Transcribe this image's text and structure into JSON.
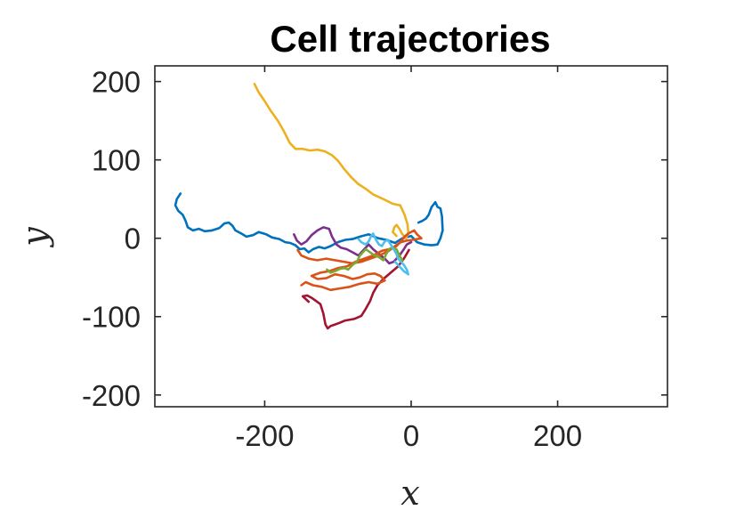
{
  "chart_data": {
    "type": "line",
    "title": "Cell trajectories",
    "xlabel": "x",
    "ylabel": "y",
    "xlim": [
      -350,
      350
    ],
    "ylim": [
      -215,
      220
    ],
    "xticks": [
      -200,
      0,
      200
    ],
    "yticks": [
      -200,
      -100,
      0,
      100,
      200
    ],
    "xtick_labels": [
      "-200",
      "0",
      "200"
    ],
    "ytick_labels": [
      "-200",
      "-100",
      "0",
      "100",
      "200"
    ],
    "grid": false,
    "series": [
      {
        "color": "#0072BD",
        "points": [
          [
            -315,
            57
          ],
          [
            -320,
            50
          ],
          [
            -322,
            42
          ],
          [
            -318,
            35
          ],
          [
            -312,
            30
          ],
          [
            -308,
            22
          ],
          [
            -305,
            14
          ],
          [
            -298,
            10
          ],
          [
            -290,
            12
          ],
          [
            -282,
            9
          ],
          [
            -272,
            10
          ],
          [
            -262,
            13
          ],
          [
            -255,
            19
          ],
          [
            -249,
            20
          ],
          [
            -244,
            16
          ],
          [
            -240,
            10
          ],
          [
            -232,
            6
          ],
          [
            -225,
            2
          ],
          [
            -216,
            4
          ],
          [
            -208,
            8
          ],
          [
            -198,
            5
          ],
          [
            -190,
            1
          ],
          [
            -180,
            -1
          ],
          [
            -172,
            -5
          ],
          [
            -165,
            -6
          ],
          [
            -158,
            -9
          ],
          [
            -152,
            -14
          ],
          [
            -146,
            -13
          ],
          [
            -140,
            -18
          ],
          [
            -134,
            -14
          ],
          [
            -126,
            -11
          ],
          [
            -118,
            -13
          ],
          [
            -110,
            -10
          ],
          [
            -100,
            -5
          ],
          [
            -90,
            -2
          ],
          [
            -80,
            -1
          ],
          [
            -70,
            2
          ],
          [
            -58,
            5
          ],
          [
            -45,
            0
          ],
          [
            -34,
            -2
          ],
          [
            -22,
            -6
          ],
          [
            -12,
            0
          ],
          [
            0,
            3
          ],
          [
            8,
            -5
          ],
          [
            18,
            -8
          ],
          [
            28,
            -9
          ],
          [
            36,
            -8
          ],
          [
            40,
            0
          ],
          [
            43,
            10
          ],
          [
            42,
            28
          ],
          [
            40,
            38
          ],
          [
            36,
            40
          ],
          [
            33,
            46
          ],
          [
            28,
            40
          ],
          [
            24,
            30
          ],
          [
            20,
            25
          ],
          [
            15,
            22
          ],
          [
            10,
            20
          ]
        ]
      },
      {
        "color": "#EDB120",
        "points": [
          [
            -214,
            197
          ],
          [
            -208,
            186
          ],
          [
            -200,
            175
          ],
          [
            -192,
            163
          ],
          [
            -182,
            150
          ],
          [
            -174,
            137
          ],
          [
            -166,
            122
          ],
          [
            -158,
            114
          ],
          [
            -148,
            114
          ],
          [
            -138,
            112
          ],
          [
            -128,
            113
          ],
          [
            -118,
            111
          ],
          [
            -108,
            106
          ],
          [
            -100,
            99
          ],
          [
            -92,
            89
          ],
          [
            -82,
            78
          ],
          [
            -72,
            69
          ],
          [
            -62,
            63
          ],
          [
            -52,
            56
          ],
          [
            -38,
            50
          ],
          [
            -25,
            44
          ],
          [
            -15,
            42
          ],
          [
            -9,
            30
          ],
          [
            -5,
            18
          ],
          [
            -4,
            8
          ],
          [
            -7,
            0
          ],
          [
            -12,
            5
          ],
          [
            -16,
            12
          ],
          [
            -20,
            17
          ],
          [
            -23,
            14
          ],
          [
            -25,
            8
          ],
          [
            -20,
            3
          ]
        ]
      },
      {
        "color": "#A2142F",
        "points": [
          [
            -3,
            -15
          ],
          [
            -10,
            -26
          ],
          [
            -18,
            -36
          ],
          [
            -28,
            -44
          ],
          [
            -38,
            -52
          ],
          [
            -46,
            -60
          ],
          [
            -52,
            -70
          ],
          [
            -56,
            -80
          ],
          [
            -62,
            -90
          ],
          [
            -68,
            -99
          ],
          [
            -78,
            -103
          ],
          [
            -90,
            -105
          ],
          [
            -98,
            -108
          ],
          [
            -104,
            -110
          ],
          [
            -110,
            -112
          ],
          [
            -114,
            -115
          ],
          [
            -117,
            -110
          ],
          [
            -120,
            -96
          ],
          [
            -124,
            -84
          ],
          [
            -130,
            -80
          ],
          [
            -136,
            -76
          ],
          [
            -142,
            -73
          ],
          [
            -148,
            -74
          ],
          [
            -140,
            -81
          ]
        ]
      },
      {
        "color": "#7E2F8E",
        "points": [
          [
            -160,
            5
          ],
          [
            -156,
            -3
          ],
          [
            -150,
            -8
          ],
          [
            -143,
            -4
          ],
          [
            -136,
            4
          ],
          [
            -128,
            10
          ],
          [
            -120,
            14
          ],
          [
            -112,
            12
          ],
          [
            -108,
            2
          ],
          [
            -102,
            -8
          ],
          [
            -96,
            -12
          ],
          [
            -88,
            -14
          ],
          [
            -80,
            -18
          ],
          [
            -72,
            -22
          ],
          [
            -64,
            -14
          ],
          [
            -58,
            -8
          ],
          [
            -52,
            -14
          ],
          [
            -44,
            -20
          ],
          [
            -36,
            -26
          ],
          [
            -30,
            -32
          ],
          [
            -24,
            -30
          ],
          [
            -16,
            -22
          ],
          [
            -10,
            -14
          ],
          [
            -6,
            -8
          ],
          [
            0,
            -5
          ]
        ]
      },
      {
        "color": "#D95319",
        "points": [
          [
            -155,
            -15
          ],
          [
            -150,
            -22
          ],
          [
            -140,
            -26
          ],
          [
            -128,
            -28
          ],
          [
            -116,
            -26
          ],
          [
            -104,
            -28
          ],
          [
            -92,
            -30
          ],
          [
            -80,
            -32
          ],
          [
            -68,
            -30
          ],
          [
            -56,
            -26
          ],
          [
            -44,
            -22
          ],
          [
            -32,
            -17
          ],
          [
            -22,
            -10
          ],
          [
            -14,
            -5
          ],
          [
            -6,
            -3
          ],
          [
            2,
            -2
          ],
          [
            8,
            -1
          ],
          [
            14,
            0
          ],
          [
            8,
            5
          ],
          [
            4,
            10
          ],
          [
            -2,
            7
          ],
          [
            -8,
            3
          ],
          [
            -14,
            -4
          ],
          [
            -20,
            -10
          ],
          [
            -30,
            -14
          ],
          [
            -40,
            -16
          ],
          [
            -52,
            -22
          ],
          [
            -64,
            -26
          ],
          [
            -76,
            -30
          ],
          [
            -88,
            -36
          ],
          [
            -100,
            -38
          ],
          [
            -112,
            -42
          ],
          [
            -124,
            -44
          ],
          [
            -136,
            -48
          ],
          [
            -128,
            -52
          ],
          [
            -116,
            -51
          ],
          [
            -104,
            -46
          ],
          [
            -92,
            -48
          ],
          [
            -80,
            -52
          ],
          [
            -70,
            -50
          ],
          [
            -60,
            -46
          ],
          [
            -50,
            -45
          ],
          [
            -42,
            -48
          ],
          [
            -36,
            -54
          ],
          [
            -46,
            -58
          ],
          [
            -58,
            -56
          ],
          [
            -70,
            -58
          ],
          [
            -84,
            -62
          ],
          [
            -98,
            -64
          ],
          [
            -110,
            -66
          ],
          [
            -122,
            -62
          ],
          [
            -134,
            -60
          ],
          [
            -144,
            -56
          ],
          [
            -150,
            -60
          ]
        ]
      },
      {
        "color": "#77AC30",
        "points": [
          [
            -115,
            -40
          ],
          [
            -110,
            -44
          ],
          [
            -104,
            -42
          ],
          [
            -97,
            -39
          ],
          [
            -91,
            -38
          ],
          [
            -86,
            -40
          ],
          [
            -80,
            -34
          ],
          [
            -74,
            -30
          ],
          [
            -70,
            -22
          ],
          [
            -66,
            -18
          ],
          [
            -62,
            -14
          ],
          [
            -56,
            -18
          ],
          [
            -50,
            -22
          ],
          [
            -44,
            -24
          ],
          [
            -38,
            -28
          ],
          [
            -34,
            -20
          ],
          [
            -30,
            -14
          ],
          [
            -26,
            -12
          ],
          [
            -20,
            -14
          ],
          [
            -16,
            -22
          ],
          [
            -12,
            -28
          ]
        ]
      },
      {
        "color": "#4DBEEE",
        "points": [
          [
            -72,
            -1
          ],
          [
            -68,
            -5
          ],
          [
            -62,
            -8
          ],
          [
            -58,
            -4
          ],
          [
            -55,
            2
          ],
          [
            -52,
            6
          ],
          [
            -48,
            -2
          ],
          [
            -44,
            -8
          ],
          [
            -40,
            -10
          ],
          [
            -36,
            -4
          ],
          [
            -32,
            -2
          ],
          [
            -28,
            -8
          ],
          [
            -24,
            -14
          ],
          [
            -20,
            -20
          ],
          [
            -18,
            -26
          ],
          [
            -14,
            -30
          ],
          [
            -10,
            -34
          ],
          [
            -6,
            -40
          ],
          [
            -4,
            -46
          ],
          [
            -10,
            -42
          ],
          [
            -16,
            -36
          ],
          [
            -22,
            -30
          ]
        ]
      }
    ]
  }
}
